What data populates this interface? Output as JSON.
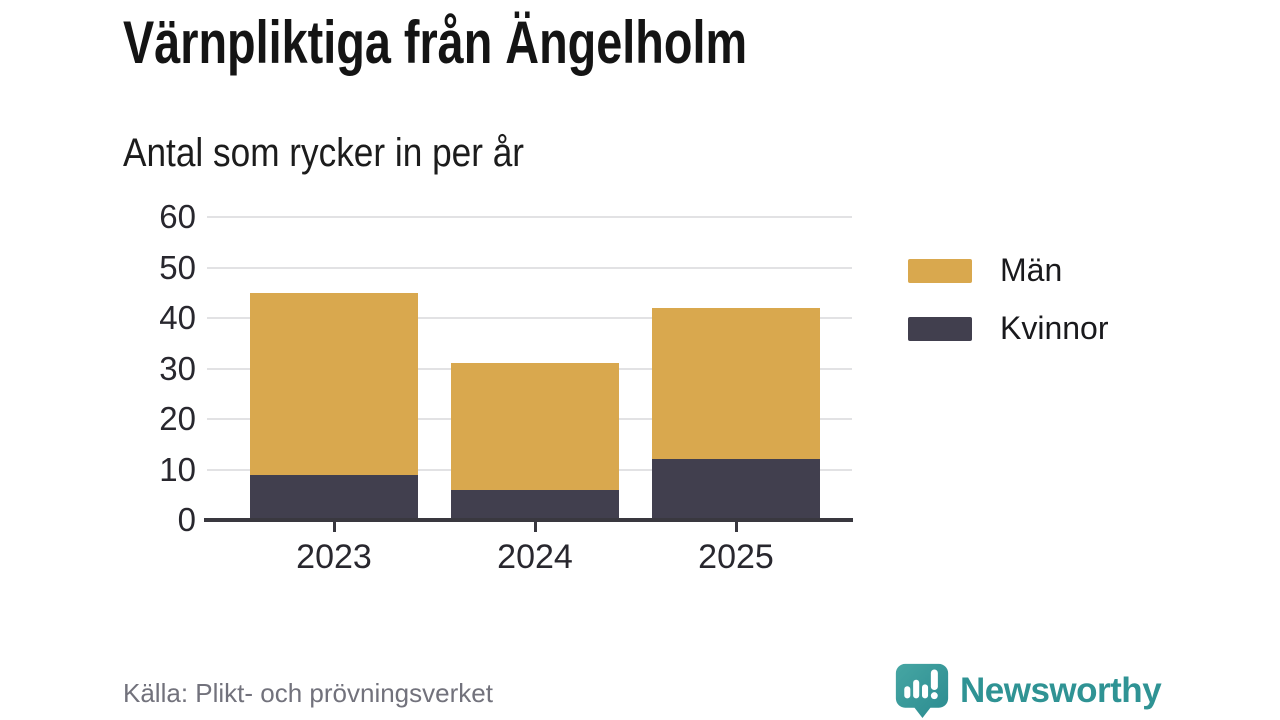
{
  "header": {
    "title": "Värnpliktiga från Ängelholm",
    "subtitle": "Antal som rycker in per år"
  },
  "chart_data": {
    "type": "bar",
    "stacked": true,
    "categories": [
      "2023",
      "2024",
      "2025"
    ],
    "series": [
      {
        "name": "Män",
        "color": "#d9a84e",
        "values": [
          36,
          25,
          30
        ]
      },
      {
        "name": "Kvinnor",
        "color": "#413f4e",
        "values": [
          9,
          6,
          12
        ]
      }
    ],
    "stack_bottom_to_top": [
      "Kvinnor",
      "Män"
    ],
    "totals": [
      45,
      31,
      42
    ],
    "ylim": [
      0,
      60
    ],
    "yticks": [
      0,
      10,
      20,
      30,
      40,
      50,
      60
    ],
    "grid": true,
    "grid_color": "#e2e2e4",
    "axis_color": "#39383f",
    "legend_position": "right"
  },
  "footer": {
    "source": "Källa: Plikt- och prövningsverket",
    "brand": "Newsworthy",
    "brand_color": "#2f9394"
  }
}
